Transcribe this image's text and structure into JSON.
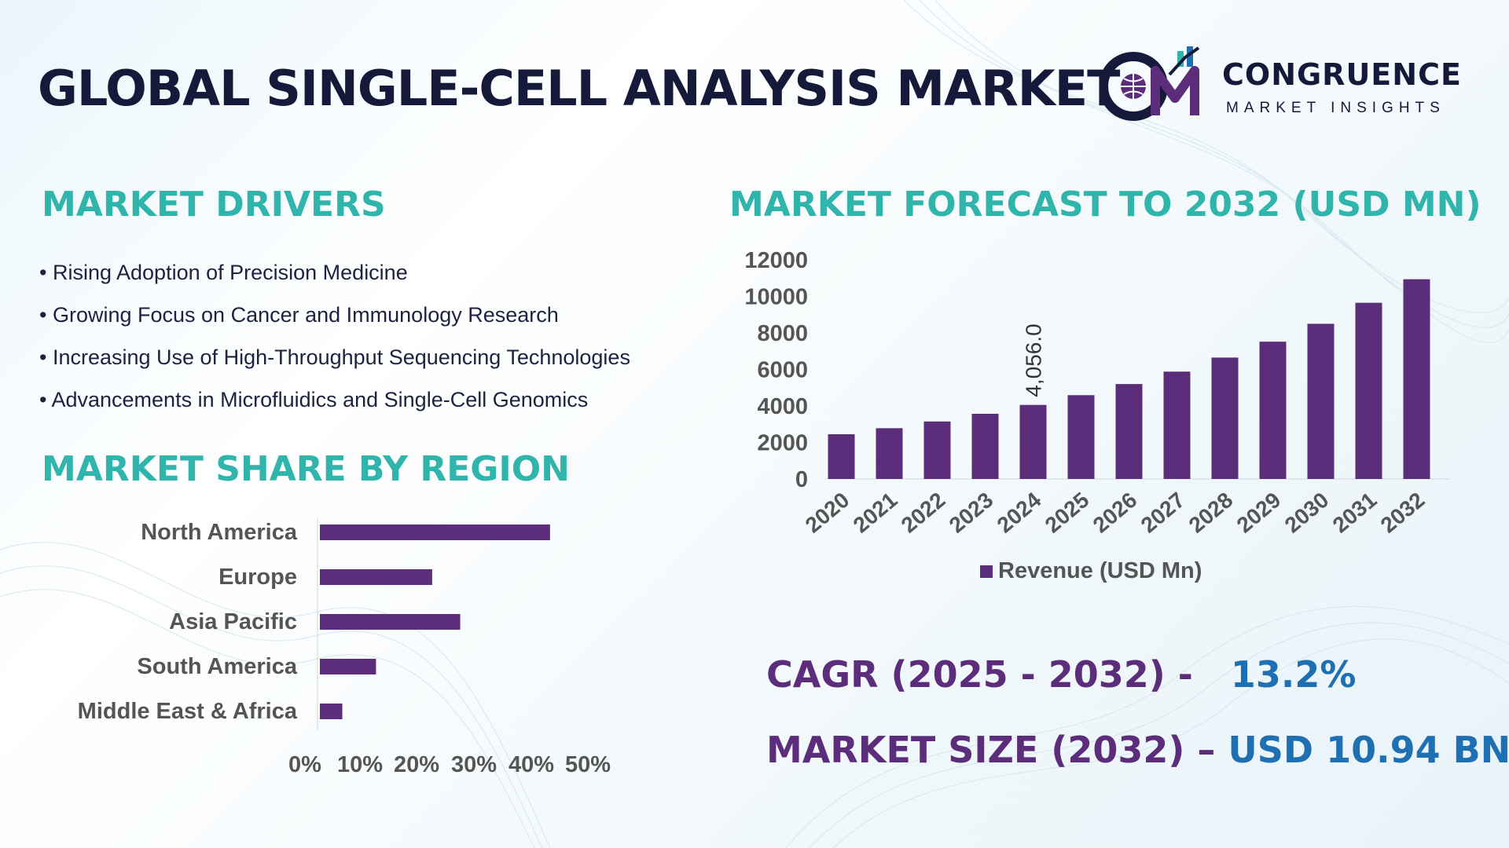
{
  "title": "GLOBAL SINGLE-CELL ANALYSIS MARKET",
  "logo": {
    "name": "CONGRUENCE",
    "tagline": "MARKET INSIGHTS"
  },
  "drivers": {
    "heading": "MARKET DRIVERS",
    "items": [
      "Rising Adoption of Precision Medicine",
      "Growing Focus on Cancer and Immunology Research",
      "Increasing Use of High-Throughput Sequencing Technologies",
      "Advancements in Microfluidics and Single-Cell Genomics"
    ]
  },
  "region": {
    "heading": "MARKET SHARE BY REGION"
  },
  "forecast": {
    "heading": "MARKET FORECAST TO 2032 (USD MN)"
  },
  "kpis": {
    "cagr_label": "CAGR (2025 - 2032) -",
    "cagr_value": "13.2%",
    "size_label": "MARKET SIZE (2032) –",
    "size_value": "USD 10.94 BN"
  },
  "colors": {
    "bar": "#5b2d7a",
    "heading": "#2fb5ab",
    "title": "#161a3a",
    "kpi_label": "#5b2d7a",
    "kpi_value": "#1f6fb3"
  },
  "chart_data": [
    {
      "type": "bar",
      "orientation": "horizontal",
      "categories": [
        "North America",
        "Europe",
        "Asia Pacific",
        "South America",
        "Middle East & Africa"
      ],
      "values": [
        41,
        20,
        25,
        10,
        4
      ],
      "xlim": [
        0,
        50
      ],
      "xticks": [
        "0%",
        "10%",
        "20%",
        "30%",
        "40%",
        "50%"
      ]
    },
    {
      "type": "bar",
      "categories": [
        "2020",
        "2021",
        "2022",
        "2023",
        "2024",
        "2025",
        "2026",
        "2027",
        "2028",
        "2029",
        "2030",
        "2031",
        "2032"
      ],
      "series": [
        {
          "name": "Revenue (USD Mn)",
          "values": [
            2450,
            2780,
            3150,
            3570,
            4056,
            4590,
            5200,
            5880,
            6650,
            7520,
            8500,
            9650,
            10940
          ]
        }
      ],
      "ylim": [
        0,
        12000
      ],
      "yticks": [
        0,
        2000,
        4000,
        6000,
        8000,
        10000,
        12000
      ],
      "annotations": [
        {
          "category": "2024",
          "text": "4,056.0"
        }
      ],
      "legend": "bottom"
    }
  ]
}
